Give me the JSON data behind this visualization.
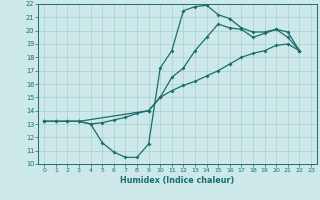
{
  "title": "",
  "xlabel": "Humidex (Indice chaleur)",
  "xlim": [
    -0.5,
    23.5
  ],
  "ylim": [
    10,
    22
  ],
  "xticks": [
    0,
    1,
    2,
    3,
    4,
    5,
    6,
    7,
    8,
    9,
    10,
    11,
    12,
    13,
    14,
    15,
    16,
    17,
    18,
    19,
    20,
    21,
    22,
    23
  ],
  "yticks": [
    10,
    11,
    12,
    13,
    14,
    15,
    16,
    17,
    18,
    19,
    20,
    21,
    22
  ],
  "background_color": "#cce8e8",
  "line_color": "#1a6e6e",
  "grid_color": "#aacfcf",
  "curve1_x": [
    0,
    1,
    2,
    3,
    4,
    5,
    6,
    7,
    8,
    9,
    10,
    11,
    12,
    13,
    14,
    15,
    16,
    17,
    18,
    19,
    20,
    21,
    22
  ],
  "curve1_y": [
    13.2,
    13.2,
    13.2,
    13.2,
    13.0,
    11.6,
    10.9,
    10.5,
    10.5,
    11.5,
    17.2,
    18.5,
    21.5,
    21.8,
    21.9,
    21.2,
    20.9,
    20.2,
    19.9,
    19.9,
    20.1,
    19.9,
    18.5
  ],
  "curve2_x": [
    0,
    1,
    2,
    3,
    4,
    5,
    6,
    7,
    8,
    9,
    10,
    11,
    12,
    13,
    14,
    15,
    16,
    17,
    18,
    19,
    20,
    21,
    22
  ],
  "curve2_y": [
    13.2,
    13.2,
    13.2,
    13.2,
    13.0,
    13.1,
    13.3,
    13.5,
    13.8,
    14.0,
    15.0,
    15.5,
    15.9,
    16.2,
    16.6,
    17.0,
    17.5,
    18.0,
    18.3,
    18.5,
    18.9,
    19.0,
    18.5
  ],
  "curve3_x": [
    0,
    3,
    9,
    10,
    11,
    12,
    13,
    14,
    15,
    16,
    17,
    18,
    19,
    20,
    21,
    22
  ],
  "curve3_y": [
    13.2,
    13.2,
    14.0,
    15.0,
    16.5,
    17.2,
    18.5,
    19.5,
    20.5,
    20.2,
    20.1,
    19.5,
    19.8,
    20.1,
    19.5,
    18.5
  ]
}
